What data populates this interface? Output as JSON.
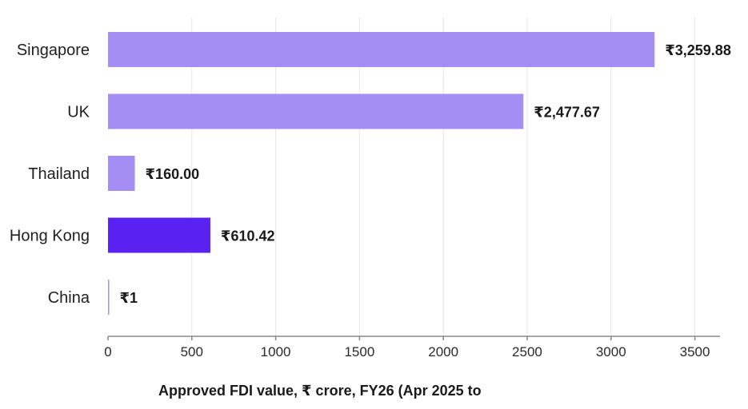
{
  "colors": {
    "bar_default": "#a48ef3",
    "bar_highlight": "#5a22f0",
    "grid": "#e6e6e6",
    "axis": "#888888",
    "text": "#1a1a1a"
  },
  "chart_data": {
    "type": "bar",
    "orientation": "horizontal",
    "categories": [
      "Singapore",
      "UK",
      "Thailand",
      "Hong Kong",
      "China"
    ],
    "values": [
      3259.88,
      2477.67,
      160.0,
      610.42,
      1
    ],
    "value_labels": [
      "₹3,259.88",
      "₹2,477.67",
      "₹160.00",
      "₹610.42",
      "₹1"
    ],
    "highlight": [
      "Hong Kong"
    ],
    "xlabel": "Approved FDI value, ₹ crore, FY26 (Apr 2025 to",
    "xlim": [
      0,
      3650
    ],
    "xticks": [
      0,
      500,
      1000,
      1500,
      2000,
      2500,
      3000,
      3500
    ],
    "xtick_labels": [
      "0",
      "500",
      "1000",
      "1500",
      "2000",
      "2500",
      "3000",
      "3500"
    ],
    "grid": "vertical"
  }
}
